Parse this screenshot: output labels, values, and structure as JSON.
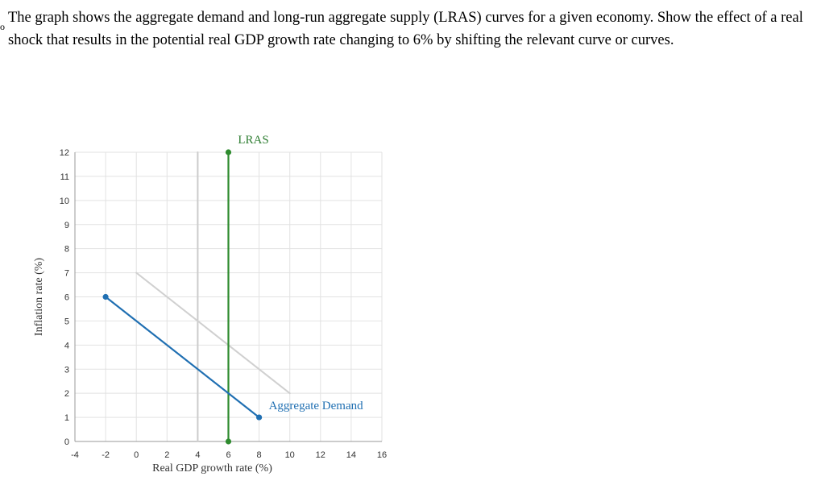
{
  "question": {
    "margin_mark": "o",
    "text": "The graph shows the aggregate demand and long-run aggregate supply (LRAS) curves for a given economy. Show the effect of a real shock that results in the potential real GDP growth rate changing to 6% by shifting the relevant curve or curves."
  },
  "chart_data": {
    "type": "line",
    "xlabel": "Real GDP growth rate (%)",
    "ylabel": "Inflation rate (%)",
    "xlim": [
      -4,
      16
    ],
    "ylim": [
      0,
      12
    ],
    "x_ticks": [
      -4,
      -2,
      0,
      2,
      4,
      6,
      8,
      10,
      12,
      14,
      16
    ],
    "y_ticks": [
      0,
      1,
      2,
      3,
      4,
      5,
      6,
      7,
      8,
      9,
      10,
      11,
      12
    ],
    "grid": true,
    "series": [
      {
        "name": "",
        "color": "#cccccc",
        "points": [
          [
            4,
            0
          ],
          [
            4,
            12
          ]
        ]
      },
      {
        "name": "",
        "color": "#d0d0d0",
        "points": [
          [
            0,
            7
          ],
          [
            10,
            2
          ]
        ]
      },
      {
        "name": "LRAS",
        "color": "#2e8b2e",
        "points": [
          [
            6,
            0
          ],
          [
            6,
            12
          ]
        ],
        "markers": true
      },
      {
        "name": "Aggregate Demand",
        "color": "#1f6fb2",
        "points": [
          [
            -2,
            6
          ],
          [
            8,
            1
          ]
        ],
        "markers": true
      }
    ],
    "annotations": [
      {
        "text": "LRAS",
        "at": [
          6,
          12
        ]
      },
      {
        "text": "Aggregate Demand",
        "at": [
          8,
          1
        ]
      }
    ]
  }
}
